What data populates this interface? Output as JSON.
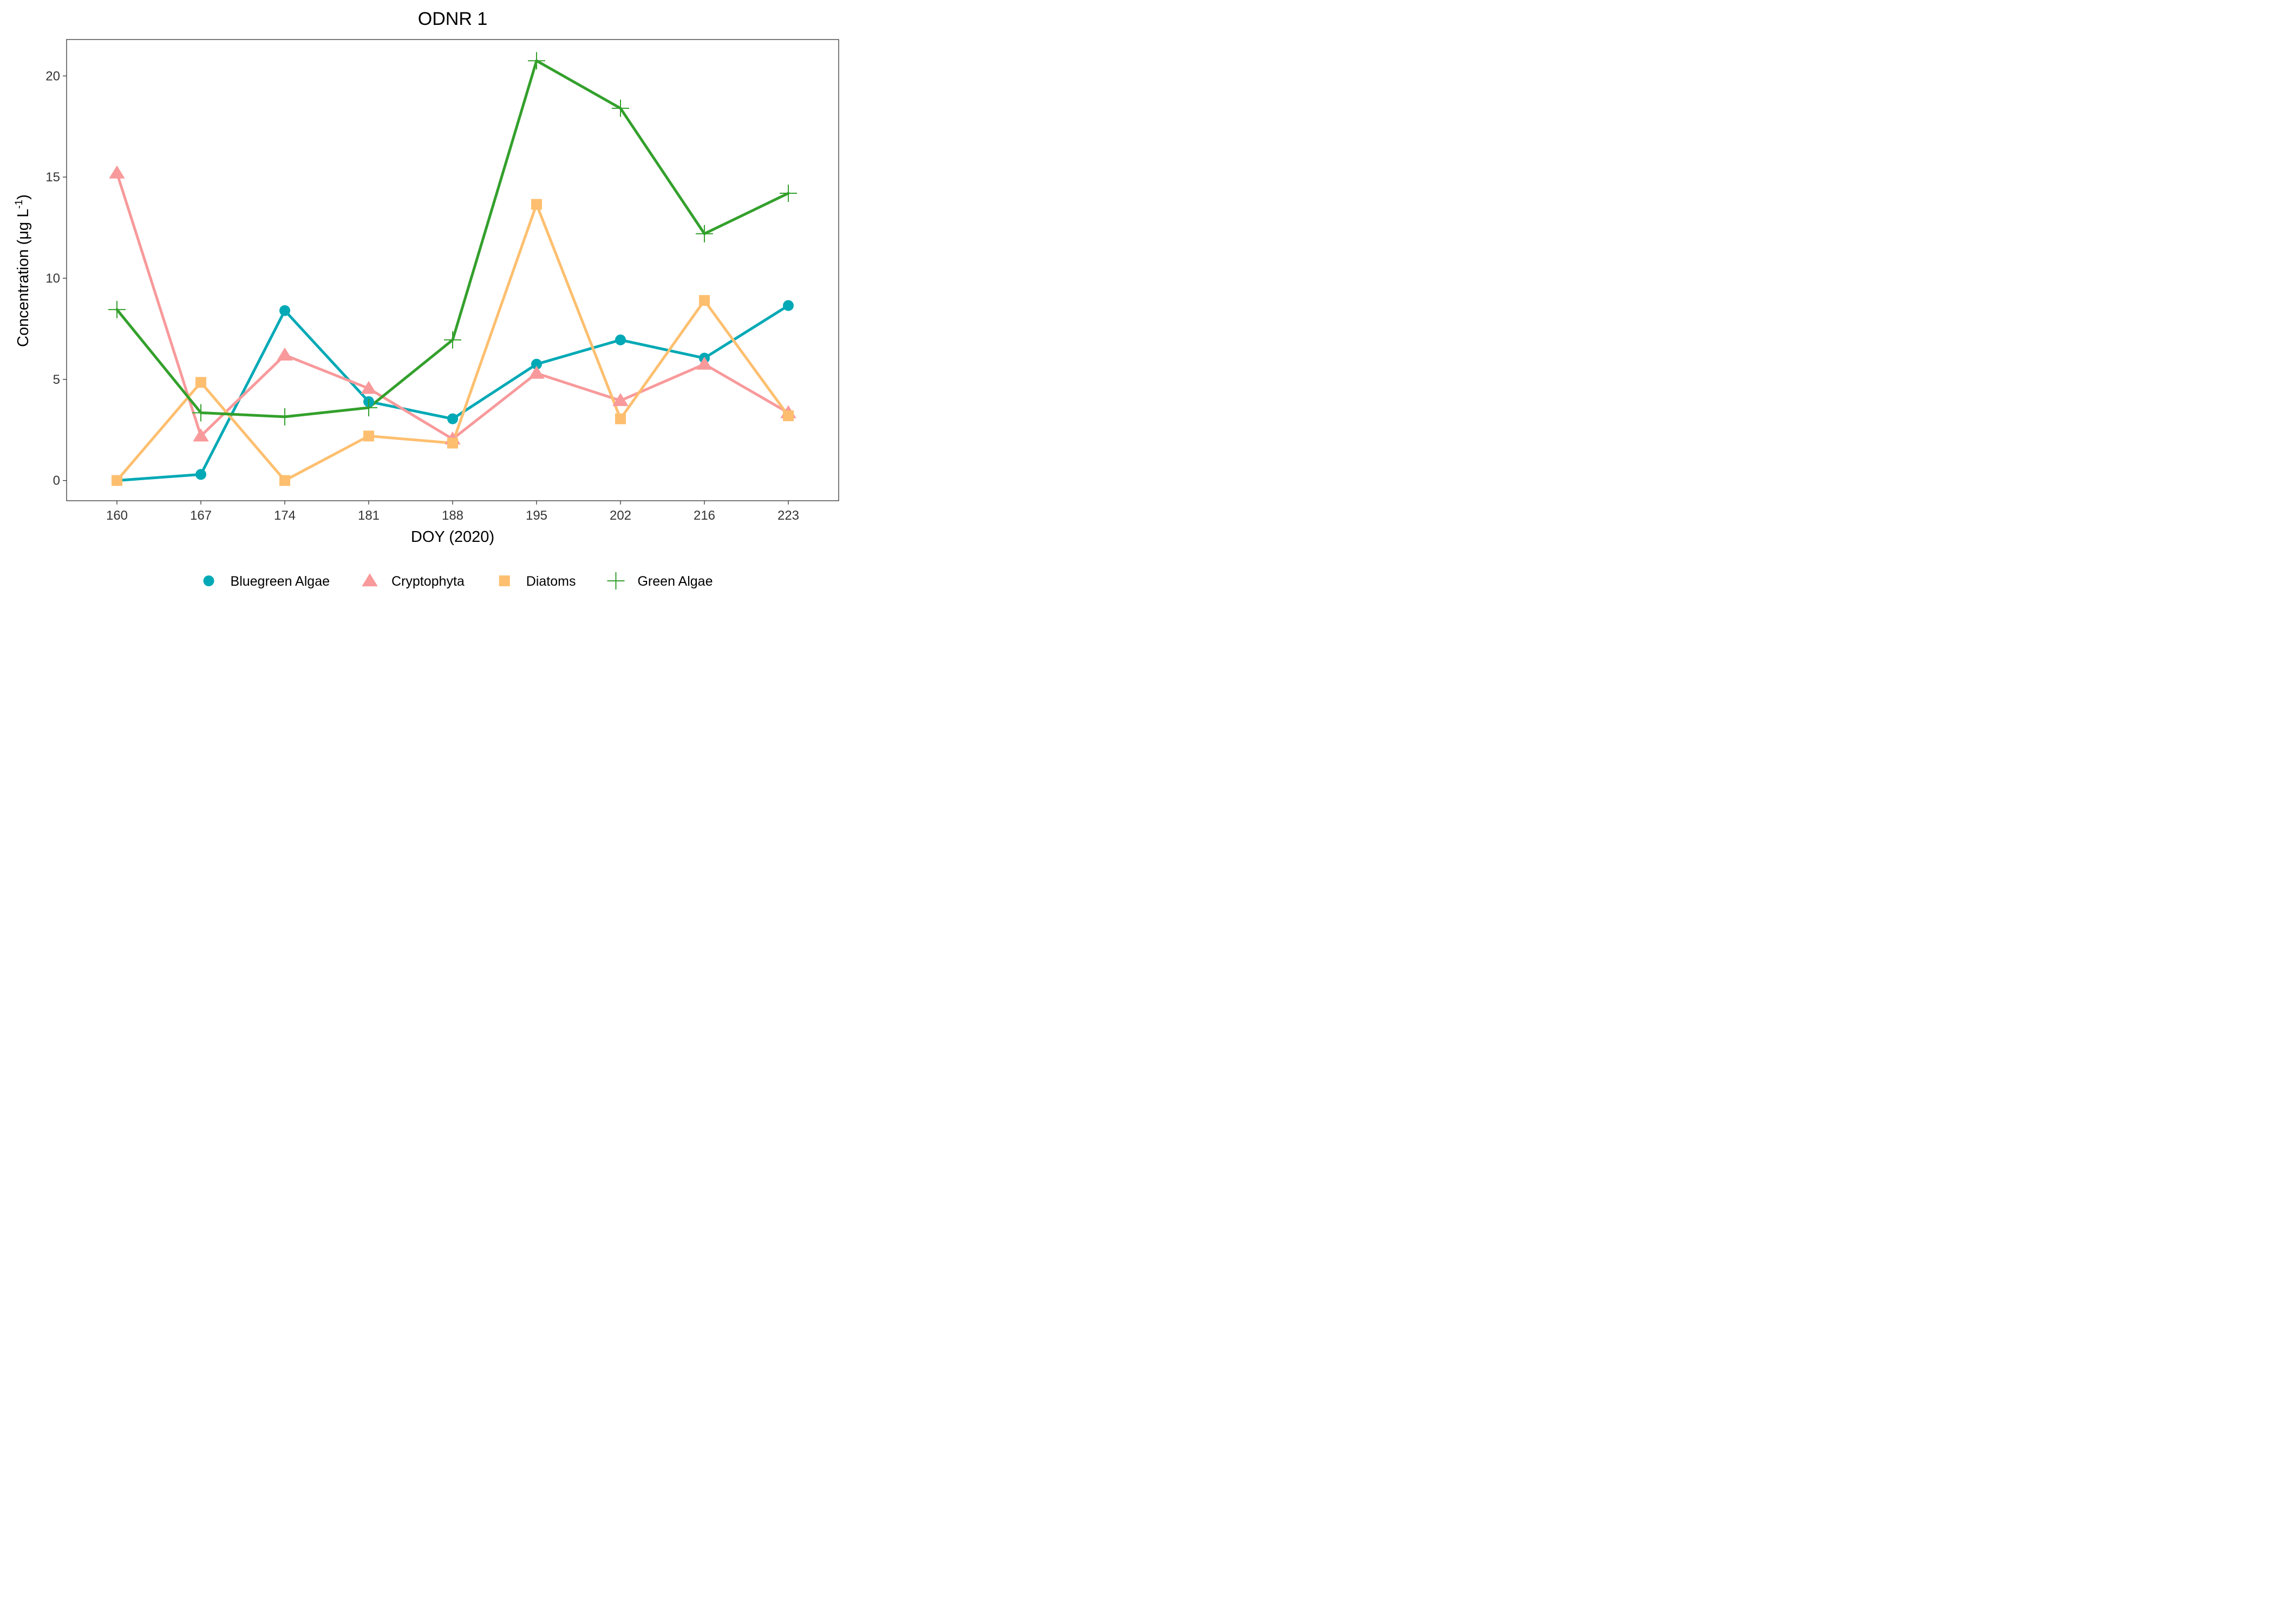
{
  "chart_data": {
    "type": "line",
    "title": "ODNR 1",
    "xlabel": "DOY (2020)",
    "ylabel": {
      "prefix": "Concentration (μg L",
      "superscript": "-1",
      "suffix": ")"
    },
    "categories": [
      "160",
      "167",
      "174",
      "181",
      "188",
      "195",
      "202",
      "216",
      "223"
    ],
    "ylim": [
      -1,
      21.8
    ],
    "yticks": [
      0,
      5,
      10,
      15,
      20
    ],
    "grid": false,
    "legend_position": "bottom",
    "series": [
      {
        "name": "Bluegreen Algae",
        "color": "#00A9B5",
        "marker": "circle",
        "values": [
          0,
          0.3,
          8.4,
          3.9,
          3.05,
          5.75,
          6.95,
          6.05,
          8.65
        ]
      },
      {
        "name": "Cryptophyta",
        "color": "#F8999B",
        "marker": "triangle",
        "values": [
          15.2,
          2.2,
          6.2,
          4.55,
          2.05,
          5.3,
          3.95,
          5.75,
          3.35
        ]
      },
      {
        "name": "Diatoms",
        "color": "#FDBF6F",
        "marker": "square",
        "values": [
          0,
          4.85,
          0,
          2.2,
          1.85,
          13.65,
          3.05,
          8.9,
          3.2
        ]
      },
      {
        "name": "Green Algae",
        "color": "#33A02C",
        "marker": "plus",
        "values": [
          8.45,
          3.35,
          3.15,
          3.6,
          6.95,
          20.75,
          18.4,
          12.2,
          14.2
        ]
      }
    ]
  }
}
